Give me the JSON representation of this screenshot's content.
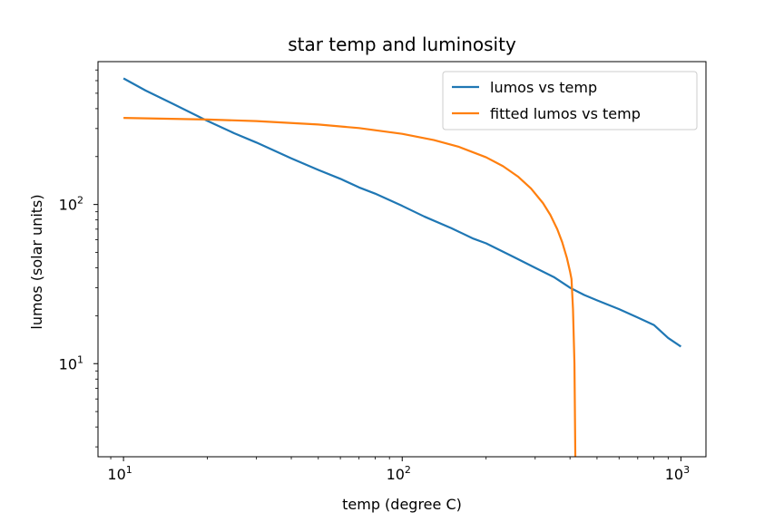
{
  "chart_data": {
    "type": "line",
    "title": "star temp and luminosity",
    "xlabel": "temp (degree C)",
    "ylabel": "lumos (solar units)",
    "xscale": "log",
    "yscale": "log",
    "xlim": [
      8.1,
      1230
    ],
    "ylim": [
      2.6,
      790
    ],
    "x_ticks": [
      {
        "value": 10,
        "base": "10",
        "exp": "1"
      },
      {
        "value": 100,
        "base": "10",
        "exp": "2"
      },
      {
        "value": 1000,
        "base": "10",
        "exp": "3"
      }
    ],
    "y_ticks": [
      {
        "value": 10,
        "base": "10",
        "exp": "1"
      },
      {
        "value": 100,
        "base": "10",
        "exp": "2"
      }
    ],
    "grid": false,
    "legend_position": "upper right",
    "series": [
      {
        "name": "lumos vs temp",
        "color": "#1f77b4",
        "x": [
          10,
          12,
          15,
          20,
          25,
          30,
          40,
          50,
          60,
          70,
          80,
          100,
          120,
          150,
          180,
          200,
          250,
          300,
          350,
          400,
          450,
          500,
          600,
          700,
          800,
          900,
          1000
        ],
        "y": [
          620,
          520,
          430,
          335,
          280,
          245,
          195,
          165,
          145,
          128,
          117,
          98,
          84,
          71,
          61,
          57,
          47,
          40,
          35,
          30,
          27,
          25,
          22,
          19.5,
          17.5,
          14.5,
          12.8
        ]
      },
      {
        "name": "fitted lumos vs temp",
        "color": "#ff7f0e",
        "x": [
          10,
          20,
          30,
          50,
          70,
          100,
          130,
          160,
          200,
          230,
          260,
          290,
          320,
          340,
          360,
          375,
          390,
          400,
          405,
          410,
          415,
          418
        ],
        "y": [
          350,
          342,
          334,
          318,
          302,
          278,
          254,
          230,
          198,
          174,
          150,
          126,
          102,
          86,
          70,
          58,
          46,
          38,
          34,
          22,
          10,
          2.6
        ]
      }
    ]
  }
}
